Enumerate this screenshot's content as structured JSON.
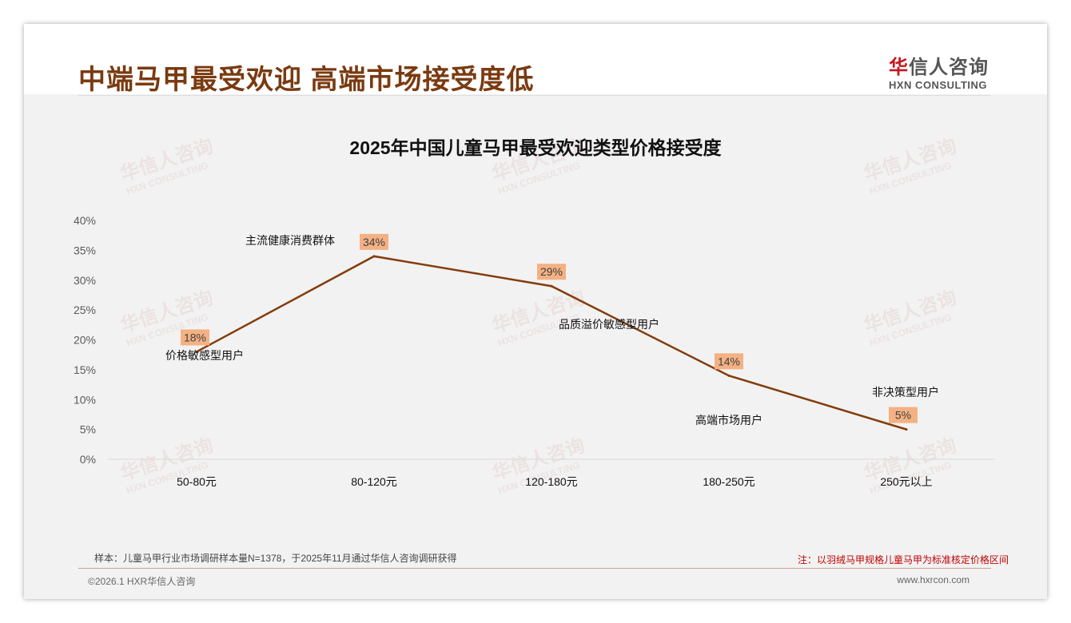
{
  "header": {
    "title": "中端马甲最受欢迎 高端市场接受度低"
  },
  "logo": {
    "cn_first": "华",
    "cn_rest": "信人咨询",
    "en": "HXN CONSULTING"
  },
  "watermark": {
    "cn": "华信人咨询",
    "en": "HXN CONSULTING"
  },
  "chart_data": {
    "type": "line",
    "title": "2025年中国儿童马甲最受欢迎类型价格接受度",
    "categories": [
      "50-80元",
      "80-120元",
      "120-180元",
      "180-250元",
      "250元以上"
    ],
    "values": [
      18,
      34,
      29,
      14,
      5
    ],
    "data_labels": [
      "18%",
      "34%",
      "29%",
      "14%",
      "5%"
    ],
    "annotations": [
      "价格敏感型用户",
      "主流健康消费群体",
      "品质溢价敏感型用户",
      "高端市场用户",
      "非决策型用户"
    ],
    "ylim": [
      0,
      40
    ],
    "yticks": [
      "0%",
      "5%",
      "10%",
      "15%",
      "20%",
      "25%",
      "30%",
      "35%",
      "40%"
    ],
    "line_color": "#843c0c",
    "label_bg": "#f4b183",
    "grid": false,
    "legend": "none"
  },
  "footer": {
    "source": "样本：儿童马甲行业市场调研样本量N=1378，于2025年11月通过华信人咨询调研获得",
    "note": "注：以羽绒马甲规格儿童马甲为标准核定价格区间",
    "copyright": "©2026.1 HXR华信人咨询",
    "url": "www.hxrcon.com"
  }
}
